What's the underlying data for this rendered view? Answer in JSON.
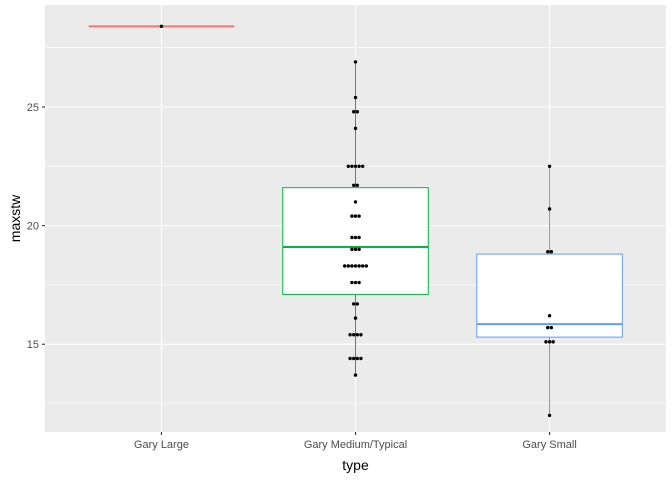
{
  "chart_data": {
    "type": "box",
    "xlabel": "type",
    "ylabel": "maxstw",
    "categories": [
      "Gary Large",
      "Gary Medium/Typical",
      "Gary Small"
    ],
    "ylim": [
      11.3,
      29.3
    ],
    "yticks": [
      15,
      20,
      25
    ],
    "grid": true,
    "boxes": [
      {
        "category": "Gary Large",
        "color": "#F8766D",
        "min": 28.4,
        "q1": 28.4,
        "median": 28.4,
        "q3": 28.4,
        "max": 28.4
      },
      {
        "category": "Gary Medium/Typical",
        "color": "#00BA38",
        "min": 13.7,
        "q1": 17.1,
        "median": 19.1,
        "q3": 21.6,
        "max": 26.9
      },
      {
        "category": "Gary Small",
        "color": "#619CFF",
        "min": 12.0,
        "q1": 15.3,
        "median": 15.85,
        "q3": 18.8,
        "max": 22.5
      }
    ],
    "points": [
      {
        "category": "Gary Large",
        "values": [
          28.4
        ]
      },
      {
        "category": "Gary Medium/Typical",
        "values": [
          26.9,
          25.4,
          24.8,
          24.8,
          24.1,
          22.5,
          22.5,
          22.5,
          22.5,
          22.5,
          21.7,
          21.7,
          21.0,
          20.4,
          20.4,
          20.4,
          19.5,
          19.5,
          19.5,
          19.0,
          19.0,
          19.0,
          18.3,
          18.3,
          18.3,
          18.3,
          18.3,
          18.3,
          18.3,
          17.6,
          17.6,
          17.6,
          16.7,
          16.7,
          16.1,
          15.4,
          15.4,
          15.4,
          15.4,
          14.4,
          14.4,
          14.4,
          14.4,
          13.7
        ]
      },
      {
        "category": "Gary Small",
        "values": [
          22.5,
          20.7,
          18.9,
          18.9,
          16.2,
          15.7,
          15.7,
          15.1,
          15.1,
          15.1,
          12.0
        ]
      }
    ]
  }
}
